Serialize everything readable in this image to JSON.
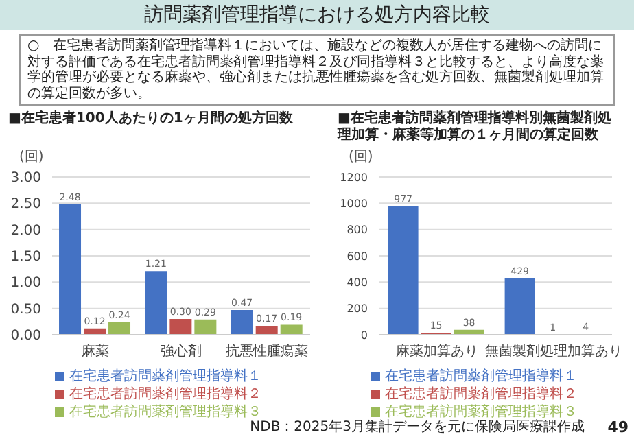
{
  "chart_data": [
    {
      "type": "bar",
      "title": "■在宅患者100人あたりの1ヶ月間の処方回数",
      "ylabel": "(回)",
      "categories": [
        "麻薬",
        "強心剤",
        "抗悪性腫瘍薬"
      ],
      "series": [
        {
          "name": "在宅患者訪問薬剤管理指導料１",
          "color": "#4472c4",
          "values": [
            2.48,
            1.21,
            0.47
          ],
          "value_labels": [
            "2.48",
            "1.21",
            "0.47"
          ]
        },
        {
          "name": "在宅患者訪問薬剤管理指導料２",
          "color": "#c0504d",
          "values": [
            0.12,
            0.3,
            0.17
          ],
          "value_labels": [
            "0.12",
            "0.30",
            "0.17"
          ]
        },
        {
          "name": "在宅患者訪問薬剤管理指導料３",
          "color": "#9bbb59",
          "values": [
            0.24,
            0.29,
            0.19
          ],
          "value_labels": [
            "0.24",
            "0.29",
            "0.19"
          ]
        }
      ],
      "ylim": [
        0,
        3
      ],
      "yticks": [
        {
          "value": 0,
          "label": "0.00"
        },
        {
          "value": 0.5,
          "label": "0.50"
        },
        {
          "value": 1,
          "label": "1.00"
        },
        {
          "value": 1.5,
          "label": "1.50"
        },
        {
          "value": 2,
          "label": "2.00"
        },
        {
          "value": 2.5,
          "label": "2.50"
        },
        {
          "value": 3,
          "label": "3.00"
        }
      ],
      "grid": "y",
      "legend": "bottom",
      "annotations": [
        "訪問薬剤管理指導における処方内容比較",
        "○　在宅患者訪問薬剤管理指導料１においては、施設などの複数人が居住する建物への訪問に対する評価である在宅患者訪問薬剤管理指導料２及び同指導料３と比較すると、より高度な薬学的管理が必要となる麻薬や、強心剤または抗悪性腫瘍薬を含む処方回数、無菌製剤処理加算の算定回数が多い。"
      ]
    },
    {
      "type": "bar",
      "title": "■在宅患者訪問薬剤管理指導料別無菌製剤処理加算・麻薬等加算の１ヶ月間の算定回数",
      "ylabel": "(回)",
      "categories": [
        "麻薬加算あり",
        "無菌製剤処理加算あり"
      ],
      "series": [
        {
          "name": "在宅患者訪問薬剤管理指導料１",
          "color": "#4472c4",
          "values": [
            977,
            429
          ]
        },
        {
          "name": "在宅患者訪問薬剤管理指導料２",
          "color": "#c0504d",
          "values": [
            15,
            1
          ]
        },
        {
          "name": "在宅患者訪問薬剤管理指導料３",
          "color": "#9bbb59",
          "values": [
            38,
            4
          ]
        }
      ],
      "ylim": [
        0,
        1200
      ],
      "yticks": [
        0,
        200,
        400,
        600,
        800,
        1000,
        1200
      ],
      "grid": "y",
      "legend": "bottom",
      "data_labels": true,
      "annotations": [
        "NDB：2025年3月集計データを元に保険局医療課作成",
        "49"
      ]
    }
  ]
}
